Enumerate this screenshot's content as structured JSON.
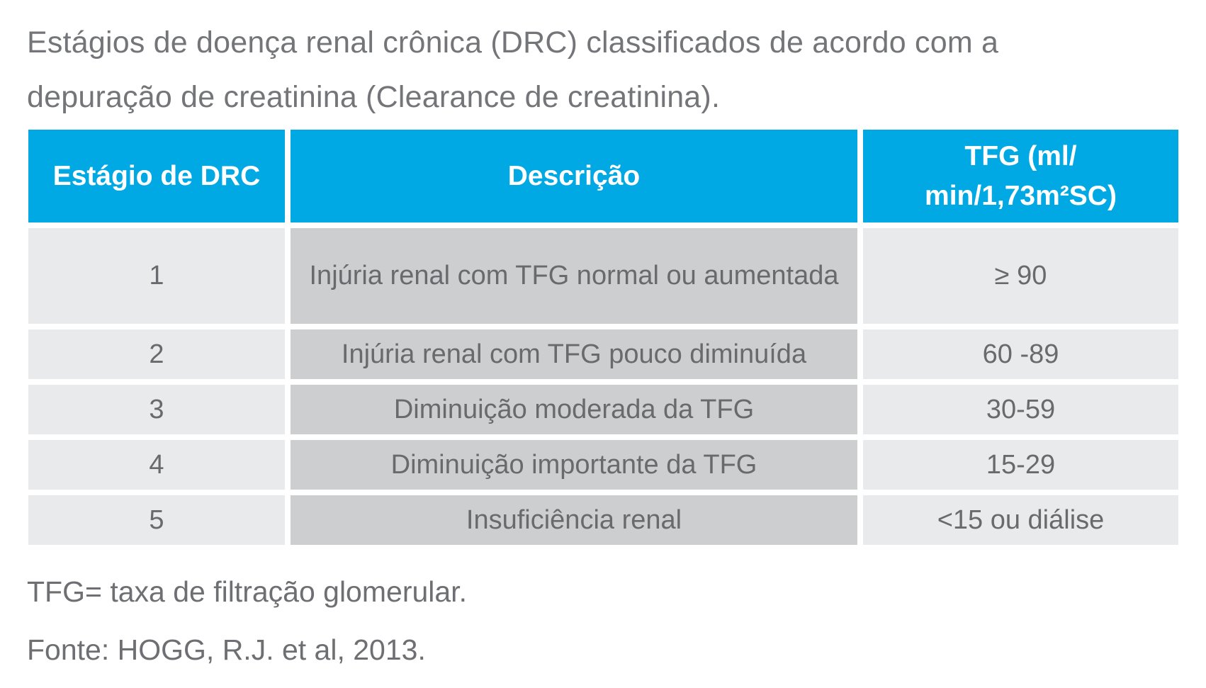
{
  "title": "Estágios de doença renal crônica (DRC) classificados de acordo com a depuração de creatinina (Clearance de creatinina).",
  "table": {
    "headers": {
      "stage": "Estágio de DRC",
      "description": "Descrição",
      "tfg_line1": "TFG (ml/",
      "tfg_line2": "min/1,73m²SC)"
    },
    "rows": [
      {
        "stage": "1",
        "description": "Injúria renal com TFG normal ou aumentada",
        "tfg": "≥ 90"
      },
      {
        "stage": "2",
        "description": "Injúria renal com TFG pouco diminuída",
        "tfg": "60 -89"
      },
      {
        "stage": "3",
        "description": "Diminuição moderada da TFG",
        "tfg": "30-59"
      },
      {
        "stage": "4",
        "description": "Diminuição importante da TFG",
        "tfg": "15-29"
      },
      {
        "stage": "5",
        "description": "Insuficiência renal",
        "tfg": "<15 ou diálise"
      }
    ]
  },
  "footnote": "TFG= taxa de filtração glomerular.",
  "source": "Fonte: HOGG, R.J. et al, 2013.",
  "colors": {
    "header_bg": "#00A8E4",
    "header_text": "#FFFFFF",
    "stage_tfg_cell_bg": "#E9EAEB",
    "description_cell_bg": "#CDCED0",
    "body_text": "#696A6D",
    "title_text": "#747578"
  }
}
